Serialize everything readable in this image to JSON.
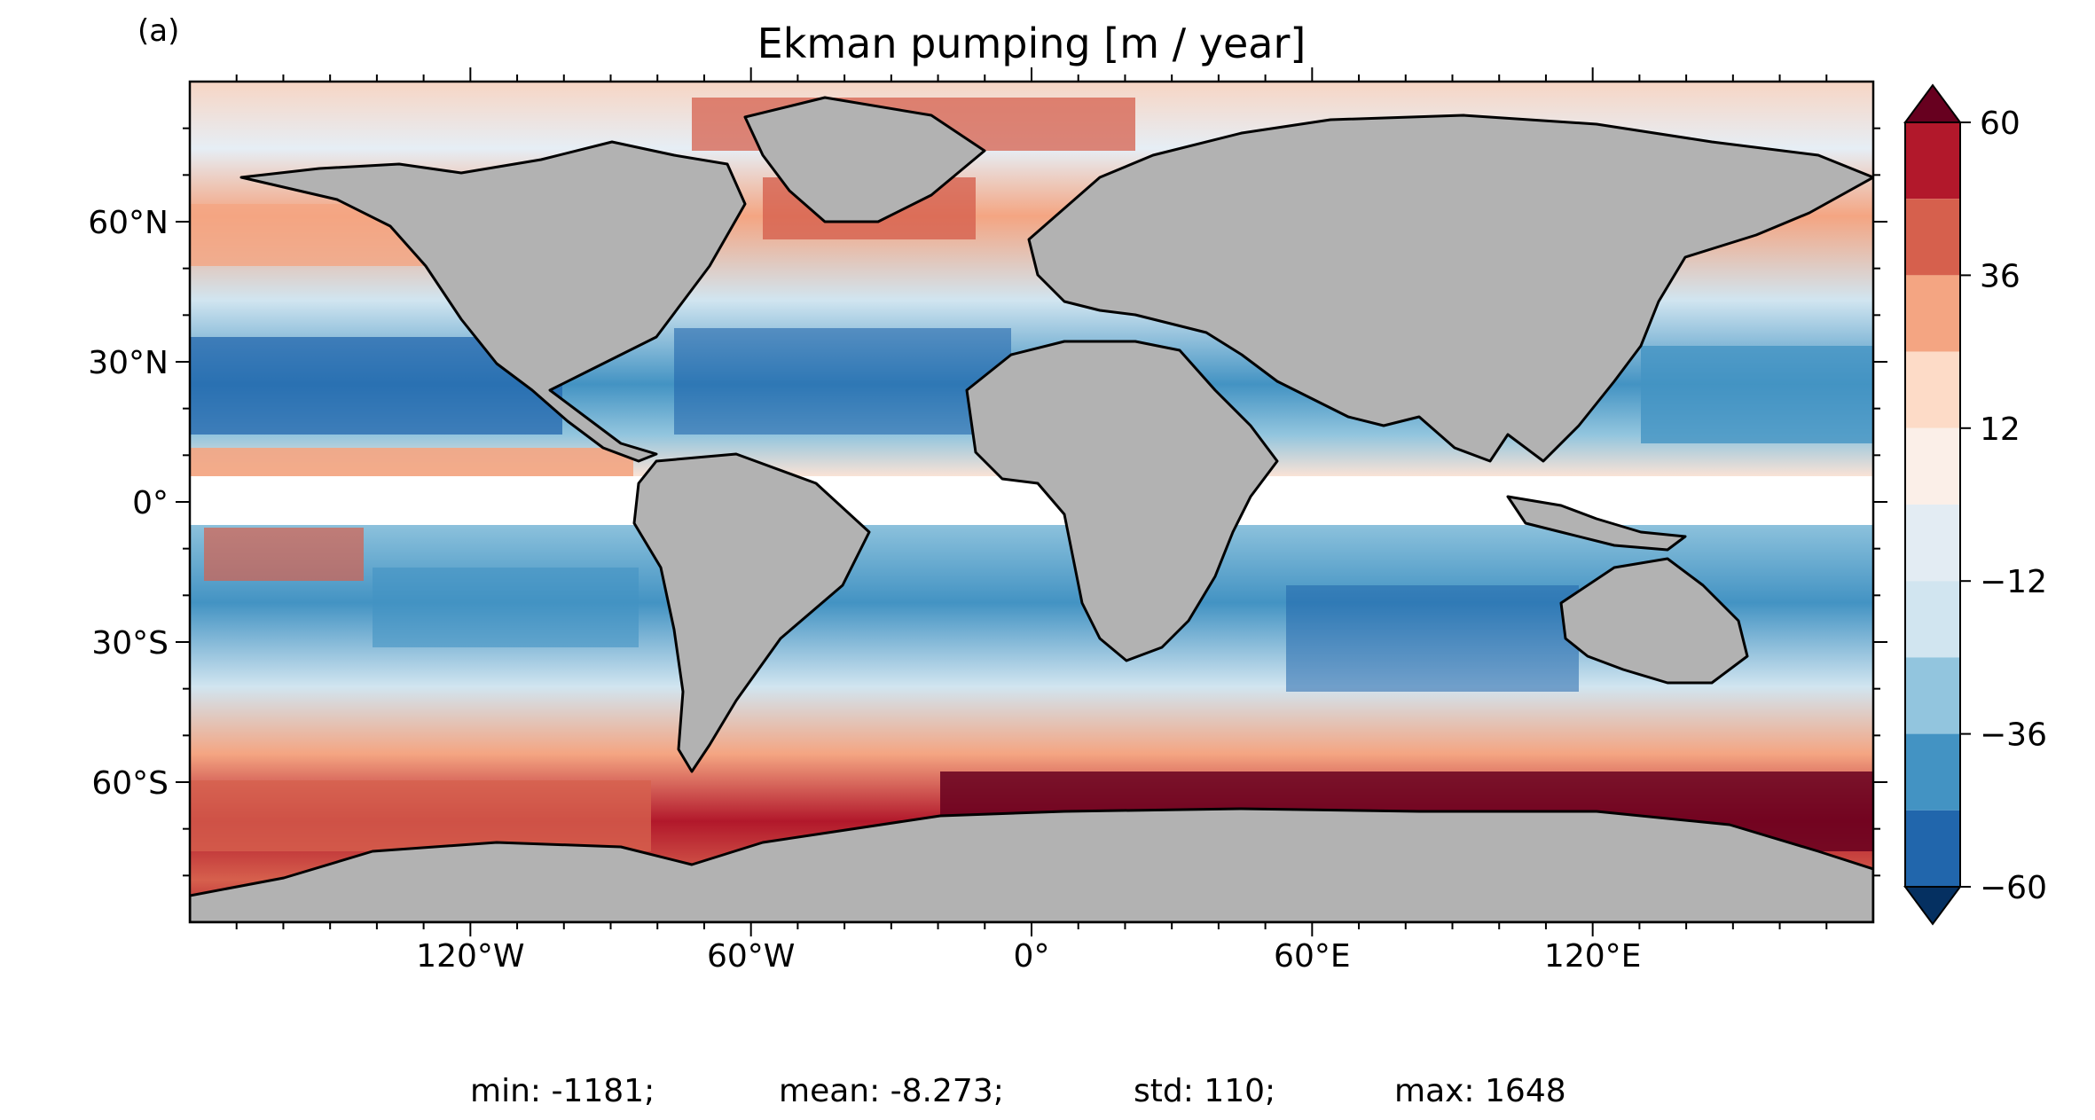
{
  "panel_label": "(a)",
  "title": "Ekman pumping [m / year]",
  "chart_data": {
    "type": "heatmap",
    "title": "Ekman pumping [m / year]",
    "projection": "plate-carree",
    "x_ticks": [
      "120°W",
      "60°W",
      "0°",
      "60°E",
      "120°E"
    ],
    "x_tick_values": [
      -120,
      -60,
      0,
      60,
      120
    ],
    "y_ticks": [
      "60°N",
      "30°N",
      "0°",
      "30°S",
      "60°S"
    ],
    "y_tick_values": [
      60,
      30,
      0,
      -30,
      -60
    ],
    "xlim": [
      -180,
      180
    ],
    "ylim": [
      -90,
      90
    ],
    "land_color": "#b2b2b2",
    "masked_band_lat": [
      -5,
      5
    ],
    "colorbar": {
      "colormap": "RdBu_r",
      "levels": [
        -60,
        -48,
        -36,
        -24,
        -12,
        0,
        12,
        24,
        36,
        48,
        60
      ],
      "tick_labels": [
        "60",
        "36",
        "12",
        "−12",
        "−36",
        "−60"
      ],
      "tick_values": [
        60,
        36,
        12,
        -12,
        -36,
        -60
      ],
      "extend": "both",
      "colors_top_to_bottom": [
        "#67001f",
        "#b2182b",
        "#d6604d",
        "#f4a582",
        "#fddbc7",
        "#fbefe8",
        "#e3ecf3",
        "#d1e5f0",
        "#92c5de",
        "#4393c3",
        "#2166ac",
        "#053061"
      ]
    }
  },
  "stats": {
    "min": "min: -1181;",
    "mean": "mean: -8.273;",
    "std": "std: 110;",
    "max": "max: 1648"
  }
}
